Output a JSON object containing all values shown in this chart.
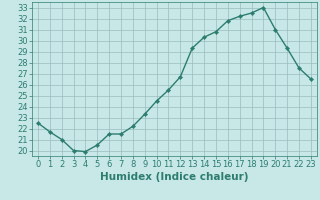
{
  "x": [
    0,
    1,
    2,
    3,
    4,
    5,
    6,
    7,
    8,
    9,
    10,
    11,
    12,
    13,
    14,
    15,
    16,
    17,
    18,
    19,
    20,
    21,
    22,
    23
  ],
  "y": [
    22.5,
    21.7,
    21.0,
    20.0,
    19.9,
    20.5,
    21.5,
    21.5,
    22.2,
    23.3,
    24.5,
    25.5,
    26.7,
    29.3,
    30.3,
    30.8,
    31.8,
    32.2,
    32.5,
    33.0,
    31.0,
    29.3,
    27.5,
    26.5
  ],
  "line_color": "#2d7d6e",
  "marker": "D",
  "marker_size": 2.2,
  "bg_color": "#c8e8e8",
  "grid_color": "#9abcbc",
  "xlabel": "Humidex (Indice chaleur)",
  "xlim": [
    -0.5,
    23.5
  ],
  "ylim": [
    19.5,
    33.5
  ],
  "yticks": [
    20,
    21,
    22,
    23,
    24,
    25,
    26,
    27,
    28,
    29,
    30,
    31,
    32,
    33
  ],
  "xticks": [
    0,
    1,
    2,
    3,
    4,
    5,
    6,
    7,
    8,
    9,
    10,
    11,
    12,
    13,
    14,
    15,
    16,
    17,
    18,
    19,
    20,
    21,
    22,
    23
  ],
  "xlabel_fontsize": 7.5,
  "tick_fontsize": 6.0,
  "linewidth": 1.0
}
